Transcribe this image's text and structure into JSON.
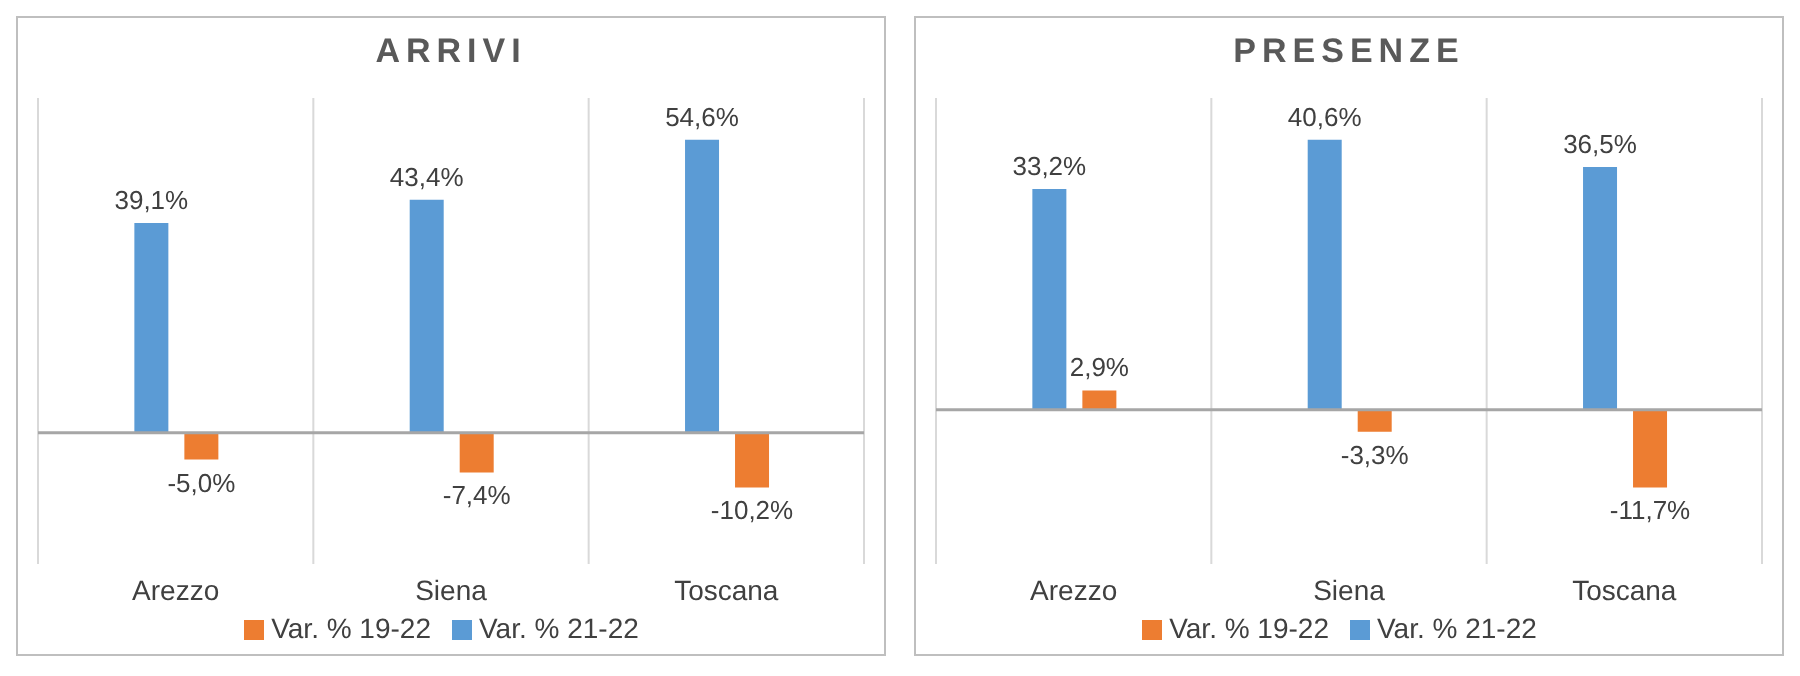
{
  "chart_data": [
    {
      "type": "bar",
      "title": "ARRIVI",
      "categories": [
        "Arezzo",
        "Siena",
        "Toscana"
      ],
      "series": [
        {
          "name": "Var. % 21-22",
          "color": "#5b9bd5",
          "values": [
            39.1,
            43.4,
            54.6
          ],
          "value_labels": [
            "39,1%",
            "43,4%",
            "54,6%"
          ]
        },
        {
          "name": "Var. % 19-22",
          "color": "#ed7d31",
          "values": [
            -5.0,
            -7.4,
            -10.2
          ],
          "value_labels": [
            "-5,0%",
            "-7,4%",
            "-10,2%"
          ]
        }
      ],
      "grid": "x",
      "legend": "bottom"
    },
    {
      "type": "bar",
      "title": "PRESENZE",
      "categories": [
        "Arezzo",
        "Siena",
        "Toscana"
      ],
      "series": [
        {
          "name": "Var. % 21-22",
          "color": "#5b9bd5",
          "values": [
            33.2,
            40.6,
            36.5
          ],
          "value_labels": [
            "33,2%",
            "40,6%",
            "36,5%"
          ]
        },
        {
          "name": "Var. % 19-22",
          "color": "#ed7d31",
          "values": [
            2.9,
            -3.3,
            -11.7
          ],
          "value_labels": [
            "2,9%",
            "-3,3%",
            "-11,7%"
          ]
        }
      ],
      "grid": "x",
      "legend": "bottom"
    }
  ]
}
